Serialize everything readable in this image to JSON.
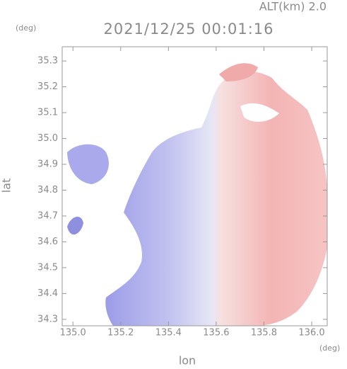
{
  "chart_data": {
    "type": "radar-field",
    "altitude_label": "ALT(km)  2.0",
    "y_unit": "(deg)",
    "title": "2021/12/25 00:01:16",
    "x_unit": "(deg)",
    "xlabel": "lon",
    "ylabel": "lat",
    "xlim": [
      134.955,
      136.065
    ],
    "ylim": [
      34.275,
      35.355
    ],
    "xticks": [
      {
        "value": 135.0,
        "label": "135.0"
      },
      135.2,
      135.4,
      135.6,
      135.8,
      {
        "value": 136.0,
        "label": "136.0"
      }
    ],
    "yticks": [
      34.3,
      34.4,
      34.5,
      34.6,
      34.7,
      34.8,
      34.9,
      {
        "value": 35.0,
        "label": "35.0"
      },
      35.1,
      35.2,
      35.3
    ]
  }
}
